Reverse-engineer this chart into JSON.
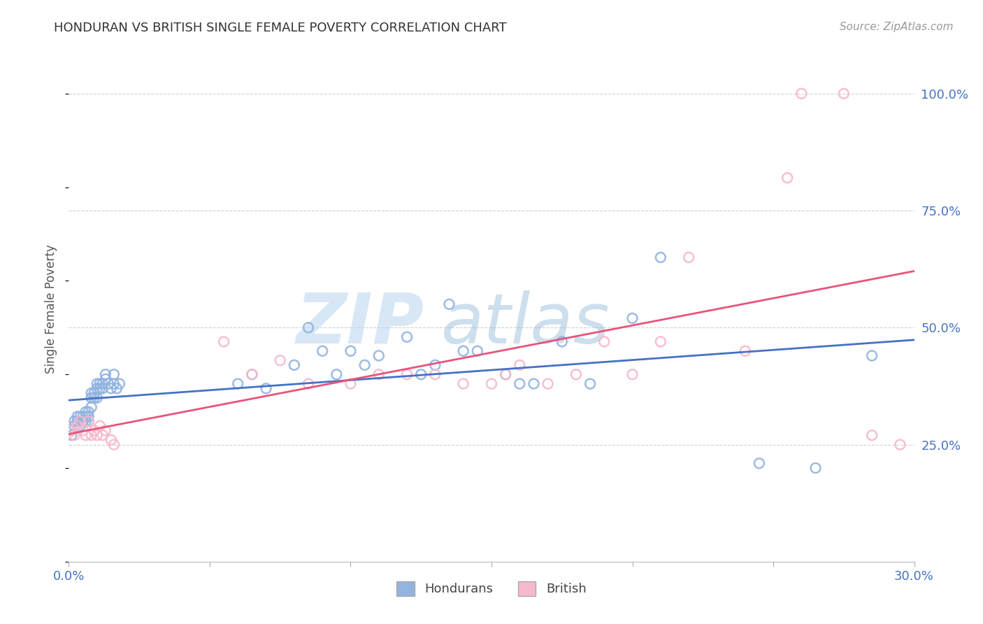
{
  "title": "HONDURAN VS BRITISH SINGLE FEMALE POVERTY CORRELATION CHART",
  "source": "Source: ZipAtlas.com",
  "ylabel": "Single Female Poverty",
  "xlim": [
    0.0,
    0.3
  ],
  "ylim": [
    0.0,
    1.08
  ],
  "yticks": [
    0.25,
    0.5,
    0.75,
    1.0
  ],
  "ytick_labels": [
    "25.0%",
    "50.0%",
    "75.0%",
    "100.0%"
  ],
  "xtick_labels": [
    "0.0%",
    "30.0%"
  ],
  "hondurans_color": "#92b4e0",
  "british_color": "#f7b8cc",
  "line_hondurans_color": "#4472c4",
  "line_british_color": "#e8537a",
  "hondurans_x": [
    0.001,
    0.001,
    0.002,
    0.002,
    0.003,
    0.003,
    0.003,
    0.004,
    0.004,
    0.004,
    0.005,
    0.005,
    0.005,
    0.006,
    0.006,
    0.006,
    0.007,
    0.007,
    0.007,
    0.008,
    0.008,
    0.008,
    0.009,
    0.009,
    0.01,
    0.01,
    0.01,
    0.011,
    0.011,
    0.012,
    0.012,
    0.013,
    0.013,
    0.014,
    0.015,
    0.016,
    0.016,
    0.017,
    0.018,
    0.06,
    0.065,
    0.07,
    0.08,
    0.085,
    0.09,
    0.095,
    0.1,
    0.105,
    0.11,
    0.12,
    0.125,
    0.13,
    0.135,
    0.14,
    0.145,
    0.155,
    0.16,
    0.165,
    0.175,
    0.185,
    0.2,
    0.21,
    0.245,
    0.265,
    0.285
  ],
  "hondurans_y": [
    0.28,
    0.27,
    0.29,
    0.3,
    0.3,
    0.31,
    0.29,
    0.3,
    0.31,
    0.29,
    0.3,
    0.31,
    0.3,
    0.31,
    0.32,
    0.3,
    0.31,
    0.3,
    0.32,
    0.33,
    0.35,
    0.36,
    0.35,
    0.36,
    0.35,
    0.38,
    0.37,
    0.38,
    0.37,
    0.38,
    0.37,
    0.39,
    0.4,
    0.38,
    0.37,
    0.38,
    0.4,
    0.37,
    0.38,
    0.38,
    0.4,
    0.37,
    0.42,
    0.5,
    0.45,
    0.4,
    0.45,
    0.42,
    0.44,
    0.48,
    0.4,
    0.42,
    0.55,
    0.45,
    0.45,
    0.4,
    0.38,
    0.38,
    0.47,
    0.38,
    0.52,
    0.65,
    0.21,
    0.2,
    0.44
  ],
  "british_x": [
    0.001,
    0.002,
    0.003,
    0.004,
    0.005,
    0.006,
    0.007,
    0.008,
    0.009,
    0.01,
    0.011,
    0.012,
    0.013,
    0.015,
    0.016,
    0.055,
    0.065,
    0.075,
    0.085,
    0.1,
    0.11,
    0.12,
    0.13,
    0.14,
    0.15,
    0.155,
    0.16,
    0.17,
    0.18,
    0.19,
    0.2,
    0.21,
    0.22,
    0.24,
    0.255,
    0.26,
    0.275,
    0.285,
    0.295
  ],
  "british_y": [
    0.28,
    0.27,
    0.29,
    0.3,
    0.28,
    0.27,
    0.3,
    0.27,
    0.28,
    0.27,
    0.29,
    0.27,
    0.28,
    0.26,
    0.25,
    0.47,
    0.4,
    0.43,
    0.38,
    0.38,
    0.4,
    0.4,
    0.4,
    0.38,
    0.38,
    0.4,
    0.42,
    0.38,
    0.4,
    0.47,
    0.4,
    0.47,
    0.65,
    0.45,
    0.82,
    1.0,
    1.0,
    0.27,
    0.25
  ],
  "watermark_line1": "ZIP",
  "watermark_line2": "atlas",
  "background_color": "#ffffff",
  "grid_color": "#d0d0d0"
}
